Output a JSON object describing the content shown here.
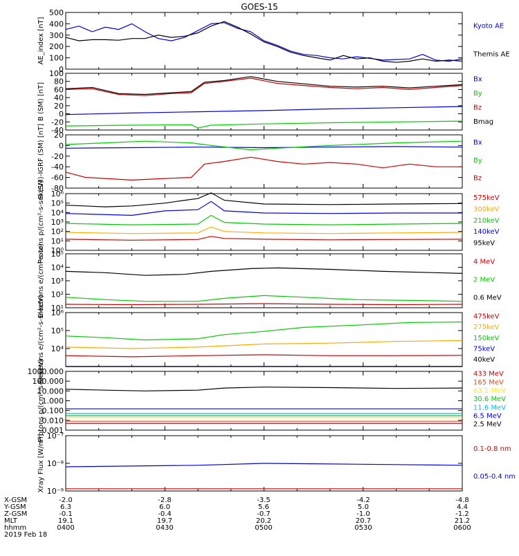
{
  "title": "GOES-15",
  "footer_rows": {
    "labels": [
      "X-GSM",
      "Y-GSM",
      "Z-GSM",
      "MLT",
      "hhmm",
      "2019 Feb 18"
    ],
    "columns": [
      [
        "-2.0",
        "6.3",
        "-0.1",
        "19.1",
        "0400"
      ],
      [
        "-2.8",
        "6.0",
        "-0.4",
        "19.7",
        "0430"
      ],
      [
        "-3.5",
        "5.6",
        "-0.7",
        "20.2",
        "0500"
      ],
      [
        "-4.2",
        "5.0",
        "-1.0",
        "20.7",
        "0530"
      ],
      [
        "-4.8",
        "4.4",
        "-1.2",
        "21.2",
        "0600"
      ]
    ]
  },
  "chart_data": [
    {
      "type": "line",
      "ylabel": "AE_index [nT]",
      "ylim": [
        0,
        500
      ],
      "yticks": [
        [
          "500",
          500
        ],
        [
          "400",
          400
        ],
        [
          "300",
          300
        ],
        [
          "200",
          200
        ],
        [
          "100",
          100
        ],
        [
          "0",
          0
        ]
      ],
      "x_unit": "minutes after 0400",
      "xlim": [
        0,
        120
      ],
      "series": [
        {
          "name": "Kyoto AE",
          "color": "#0000dd",
          "x": [
            0,
            4,
            8,
            12,
            16,
            20,
            24,
            28,
            32,
            36,
            40,
            44,
            48,
            52,
            56,
            60,
            64,
            68,
            72,
            76,
            80,
            84,
            88,
            92,
            96,
            100,
            104,
            108,
            112,
            116,
            120
          ],
          "y": [
            350,
            380,
            330,
            370,
            350,
            400,
            330,
            270,
            250,
            280,
            340,
            400,
            410,
            360,
            330,
            250,
            210,
            160,
            130,
            120,
            100,
            90,
            110,
            95,
            80,
            85,
            90,
            130,
            80,
            70,
            90
          ]
        },
        {
          "name": "Themis AE",
          "color": "#000000",
          "x": [
            0,
            4,
            8,
            12,
            16,
            20,
            24,
            28,
            32,
            36,
            40,
            44,
            48,
            52,
            56,
            60,
            64,
            68,
            72,
            76,
            80,
            84,
            88,
            92,
            96,
            100,
            104,
            108,
            112,
            116,
            120
          ],
          "y": [
            280,
            250,
            260,
            260,
            255,
            270,
            270,
            300,
            280,
            290,
            320,
            380,
            420,
            370,
            310,
            240,
            200,
            150,
            120,
            100,
            80,
            120,
            90,
            100,
            70,
            60,
            70,
            90,
            70,
            80,
            70
          ]
        }
      ]
    },
    {
      "type": "line",
      "ylabel": "B (SM) [nT]",
      "ylim": [
        -40,
        100
      ],
      "yticks": [
        [
          "100",
          100
        ],
        [
          "80",
          80
        ],
        [
          "60",
          60
        ],
        [
          "40",
          40
        ],
        [
          "20",
          20
        ],
        [
          "0",
          0
        ],
        [
          "-20",
          -20
        ],
        [
          "-40",
          -40
        ]
      ],
      "x_unit": "minutes after 0400",
      "xlim": [
        0,
        120
      ],
      "series": [
        {
          "name": "Bx",
          "color": "#0000dd",
          "x": [
            0,
            20,
            40,
            60,
            80,
            100,
            120
          ],
          "y": [
            -2,
            2,
            5,
            8,
            12,
            15,
            18
          ]
        },
        {
          "name": "By",
          "color": "#00cc00",
          "x": [
            0,
            20,
            38,
            40,
            44,
            60,
            80,
            100,
            120
          ],
          "y": [
            -30,
            -28,
            -27,
            -35,
            -28,
            -25,
            -22,
            -20,
            -18
          ]
        },
        {
          "name": "Bz",
          "color": "#cc0000",
          "x": [
            0,
            8,
            16,
            24,
            32,
            38,
            42,
            48,
            56,
            64,
            72,
            80,
            88,
            96,
            104,
            112,
            120
          ],
          "y": [
            60,
            62,
            48,
            45,
            50,
            52,
            75,
            80,
            88,
            75,
            70,
            65,
            62,
            65,
            60,
            65,
            70
          ]
        },
        {
          "name": "Bmag",
          "color": "#000000",
          "x": [
            0,
            8,
            16,
            24,
            32,
            38,
            42,
            48,
            56,
            64,
            72,
            80,
            88,
            96,
            104,
            112,
            120
          ],
          "y": [
            62,
            65,
            50,
            48,
            52,
            55,
            78,
            82,
            92,
            80,
            74,
            68,
            66,
            68,
            64,
            68,
            72
          ]
        }
      ]
    },
    {
      "type": "line",
      "ylabel": "B (SM)-IGRF (SM) [nT]",
      "ylim": [
        -80,
        20
      ],
      "yticks": [
        [
          "20",
          20
        ],
        [
          "0",
          0
        ],
        [
          "-20",
          -20
        ],
        [
          "-40",
          -40
        ],
        [
          "-60",
          -60
        ],
        [
          "-80",
          -80
        ]
      ],
      "x_unit": "minutes after 0400",
      "xlim": [
        0,
        120
      ],
      "series": [
        {
          "name": "Bx",
          "color": "#0000dd",
          "x": [
            0,
            20,
            40,
            60,
            80,
            100,
            120
          ],
          "y": [
            -5,
            -4,
            -3,
            -4,
            -3,
            -2,
            -3
          ]
        },
        {
          "name": "By",
          "color": "#00cc00",
          "x": [
            0,
            12,
            24,
            38,
            44,
            56,
            64,
            80,
            100,
            120
          ],
          "y": [
            2,
            5,
            8,
            5,
            0,
            -8,
            -5,
            0,
            5,
            8
          ]
        },
        {
          "name": "Bz",
          "color": "#cc0000",
          "x": [
            0,
            6,
            12,
            20,
            30,
            38,
            42,
            48,
            56,
            64,
            72,
            80,
            88,
            96,
            104,
            112,
            120
          ],
          "y": [
            -50,
            -60,
            -62,
            -65,
            -62,
            -60,
            -35,
            -30,
            -22,
            -30,
            -35,
            -32,
            -35,
            -42,
            -35,
            -40,
            -40
          ]
        }
      ]
    },
    {
      "type": "line",
      "ylabel": "Protons p/(cm²-s-sr-keV)",
      "log": true,
      "ylim": [
        1,
        1000000
      ],
      "yticks": [
        [
          "10⁰",
          1
        ],
        [
          "10¹",
          10
        ],
        [
          "10²",
          100
        ],
        [
          "10³",
          1000
        ],
        [
          "10⁴",
          10000
        ],
        [
          "10⁵",
          100000
        ],
        [
          "10⁶",
          1000000
        ]
      ],
      "x_unit": "minutes after 0400",
      "xlim": [
        0,
        120
      ],
      "series": [
        {
          "name": "575keV",
          "color": "#cc0000",
          "x": [
            0,
            20,
            40,
            44,
            48,
            60,
            80,
            100,
            120
          ],
          "y": [
            15,
            12,
            14,
            30,
            18,
            15,
            13,
            14,
            15
          ]
        },
        {
          "name": "300keV",
          "color": "#ffaa00",
          "x": [
            0,
            20,
            40,
            44,
            48,
            60,
            80,
            100,
            120
          ],
          "y": [
            80,
            60,
            70,
            300,
            100,
            70,
            60,
            70,
            80
          ]
        },
        {
          "name": "210keV",
          "color": "#00cc00",
          "x": [
            0,
            20,
            40,
            44,
            48,
            60,
            80,
            100,
            120
          ],
          "y": [
            700,
            500,
            600,
            5000,
            900,
            600,
            500,
            600,
            700
          ]
        },
        {
          "name": "140keV",
          "color": "#0000dd",
          "x": [
            0,
            20,
            30,
            40,
            44,
            48,
            60,
            80,
            100,
            120
          ],
          "y": [
            8000,
            5000,
            15000,
            20000,
            150000,
            15000,
            9000,
            8000,
            9000,
            9000
          ]
        },
        {
          "name": "95keV",
          "color": "#000000",
          "x": [
            0,
            12,
            20,
            30,
            36,
            40,
            44,
            48,
            60,
            80,
            100,
            120
          ],
          "y": [
            60000,
            40000,
            50000,
            100000,
            200000,
            300000,
            1200000,
            200000,
            80000,
            70000,
            80000,
            90000
          ]
        }
      ]
    },
    {
      "type": "line",
      "ylabel": "Electrons e/(cm²-s-sr)",
      "log": true,
      "ylim": [
        10,
        100000
      ],
      "yticks": [
        [
          "10¹",
          10
        ],
        [
          "10²",
          100
        ],
        [
          "10³",
          1000
        ],
        [
          "10⁴",
          10000
        ],
        [
          "10⁵",
          100000
        ]
      ],
      "x_unit": "minutes after 0400",
      "xlim": [
        0,
        120
      ],
      "series": [
        {
          "name": "4 MeV",
          "color": "#cc0000",
          "x": [
            0,
            20,
            40,
            60,
            80,
            100,
            120
          ],
          "y": [
            18,
            17,
            18,
            20,
            18,
            17,
            18
          ]
        },
        {
          "name": "2 MeV",
          "color": "#00cc00",
          "x": [
            0,
            12,
            24,
            40,
            48,
            60,
            72,
            88,
            104,
            120
          ],
          "y": [
            60,
            40,
            30,
            30,
            50,
            80,
            60,
            40,
            35,
            30
          ]
        },
        {
          "name": "0.6 MeV",
          "color": "#000000",
          "x": [
            0,
            12,
            24,
            36,
            44,
            56,
            64,
            80,
            96,
            112,
            120
          ],
          "y": [
            5000,
            4000,
            2500,
            3000,
            5000,
            8000,
            9000,
            7000,
            5000,
            4000,
            3500
          ]
        }
      ]
    },
    {
      "type": "line",
      "ylabel": "Electrons e/(cm²-s-sr-keV)",
      "log": true,
      "ylim": [
        1000,
        1000000
      ],
      "yticks": [
        [
          "10⁴",
          10000
        ],
        [
          "10⁵",
          100000
        ],
        [
          "10⁶",
          1000000
        ]
      ],
      "x_unit": "minutes after 0400",
      "xlim": [
        0,
        120
      ],
      "series": [
        {
          "name": "475keV",
          "color": "#cc0000",
          "x": [
            0,
            20,
            40,
            60,
            80,
            100,
            120
          ],
          "y": [
            4000,
            3500,
            4000,
            4500,
            4000,
            4000,
            4200
          ]
        },
        {
          "name": "275keV",
          "color": "#ffaa00",
          "x": [
            0,
            20,
            40,
            60,
            80,
            100,
            120
          ],
          "y": [
            12000,
            10000,
            12000,
            18000,
            20000,
            25000,
            28000
          ]
        },
        {
          "name": "150keV",
          "color": "#00cc00",
          "x": [
            0,
            12,
            24,
            40,
            48,
            60,
            72,
            88,
            104,
            120
          ],
          "y": [
            50000,
            40000,
            30000,
            35000,
            60000,
            90000,
            150000,
            200000,
            280000,
            300000
          ]
        },
        {
          "name": "75keV",
          "color": "#0000dd",
          "x": [
            0,
            120
          ],
          "y": [
            1000,
            1000
          ]
        },
        {
          "name": "40keV",
          "color": "#000000",
          "x": [
            0,
            120
          ],
          "y": [
            1000,
            1000
          ]
        }
      ]
    },
    {
      "type": "line",
      "ylabel": "Protons p/(cm²-s-sr-keV)",
      "log": true,
      "ylim": [
        0.001,
        1000
      ],
      "yticks": [
        [
          "1000.000",
          1000
        ],
        [
          "100.000",
          100
        ],
        [
          "10.000",
          10
        ],
        [
          "1.000",
          1
        ],
        [
          "0.100",
          0.1
        ],
        [
          "0.010",
          0.01
        ],
        [
          "0.001",
          0.001
        ]
      ],
      "x_unit": "minutes after 0400",
      "xlim": [
        0,
        120
      ],
      "series": [
        {
          "name": "433 MeV",
          "color": "#cc0000",
          "x": [
            0,
            30,
            60,
            90,
            120
          ],
          "y": [
            0.005,
            0.005,
            0.005,
            0.005,
            0.005
          ]
        },
        {
          "name": "165 MeV",
          "color": "#ff4400",
          "x": [
            0,
            30,
            60,
            90,
            120
          ],
          "y": [
            0.008,
            0.008,
            0.008,
            0.008,
            0.008
          ]
        },
        {
          "name": "63.1 MeV",
          "color": "#ffee00",
          "x": [
            0,
            30,
            60,
            90,
            120
          ],
          "y": [
            0.02,
            0.02,
            0.02,
            0.02,
            0.02
          ]
        },
        {
          "name": "30.6 MeV",
          "color": "#00cc00",
          "x": [
            0,
            30,
            60,
            90,
            120
          ],
          "y": [
            0.03,
            0.03,
            0.03,
            0.03,
            0.03
          ]
        },
        {
          "name": "11.6 MeV",
          "color": "#00bbff",
          "x": [
            0,
            30,
            60,
            90,
            120
          ],
          "y": [
            0.05,
            0.05,
            0.05,
            0.05,
            0.05
          ]
        },
        {
          "name": "6.5 MeV",
          "color": "#0000dd",
          "x": [
            0,
            30,
            60,
            90,
            120
          ],
          "y": [
            0.15,
            0.15,
            0.15,
            0.15,
            0.15
          ]
        },
        {
          "name": "2.5 MeV",
          "color": "#000000",
          "x": [
            0,
            12,
            24,
            40,
            48,
            60,
            80,
            100,
            120
          ],
          "y": [
            15,
            12,
            10,
            12,
            20,
            25,
            22,
            18,
            20
          ]
        }
      ]
    },
    {
      "type": "line",
      "ylabel": "Xray Flux [W/m²]",
      "log": true,
      "ylim": [
        1e-09,
        1e-07
      ],
      "yticks": [
        [
          "10⁻⁷",
          1e-07
        ],
        [
          "10⁻⁸",
          1e-08
        ],
        [
          "10⁻⁹",
          1e-09
        ]
      ],
      "x_unit": "minutes after 0400",
      "xlim": [
        0,
        120
      ],
      "series": [
        {
          "name": "0.1-0.8 nm",
          "color": "#cc0000",
          "x": [
            0,
            30,
            60,
            90,
            120
          ],
          "y": [
            1.2e-09,
            1.2e-09,
            1.2e-09,
            1.2e-09,
            1.2e-09
          ]
        },
        {
          "name": "0.05-0.4 nm",
          "color": "#0000dd",
          "x": [
            0,
            20,
            40,
            60,
            80,
            100,
            120
          ],
          "y": [
            7.5e-09,
            8e-09,
            8.5e-09,
            1e-08,
            9.5e-09,
            9e-09,
            8.5e-09
          ]
        }
      ]
    }
  ]
}
